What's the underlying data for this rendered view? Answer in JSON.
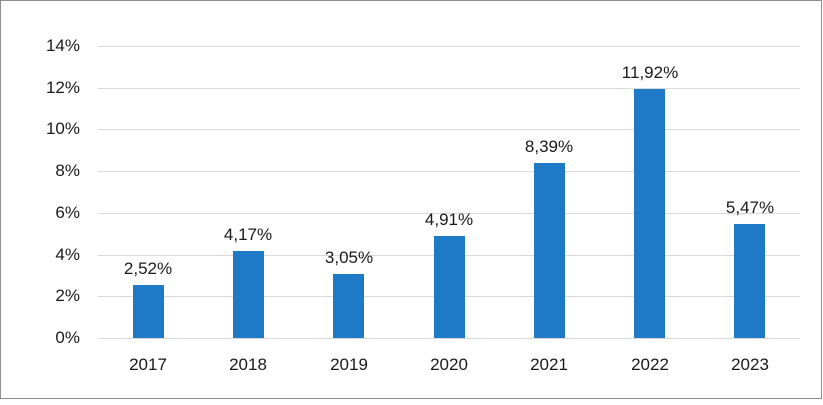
{
  "frame": {
    "background": "#FFFFFF",
    "border_color": "#8F8F8F"
  },
  "chart_data": {
    "type": "bar",
    "title": "",
    "xlabel": "",
    "ylabel": "",
    "categories": [
      "2017",
      "2018",
      "2019",
      "2020",
      "2021",
      "2022",
      "2023"
    ],
    "values": [
      2.52,
      4.17,
      3.05,
      4.91,
      8.39,
      11.92,
      5.47
    ],
    "data_labels": [
      "2,52%",
      "4,17%",
      "3,05%",
      "4,91%",
      "8,39%",
      "11,92%",
      "5,47%"
    ],
    "y_ticks": [
      "0%",
      "2%",
      "4%",
      "6%",
      "8%",
      "10%",
      "12%",
      "14%"
    ],
    "y_tick_step": 2,
    "ylim": [
      0,
      14
    ],
    "grid": true,
    "legend": false,
    "bar_color": "#1E7AC6",
    "gridline_color": "#D9D9D9",
    "axis_text_color": "#1A1A1A",
    "data_label_color": "#1A1A1A"
  }
}
